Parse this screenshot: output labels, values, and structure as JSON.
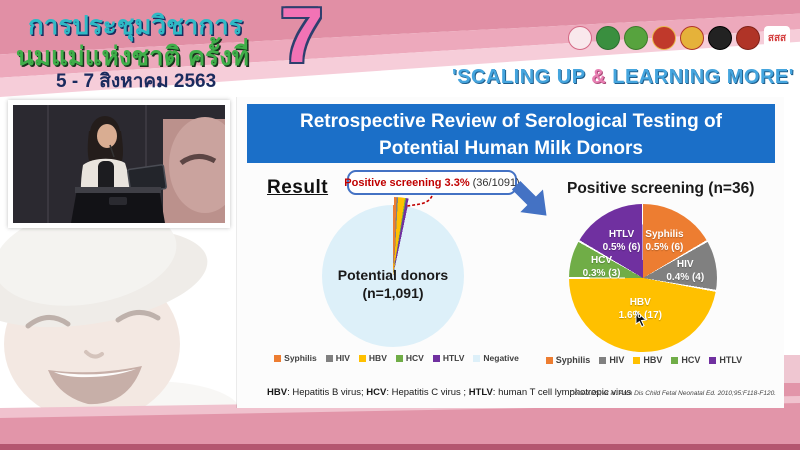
{
  "banner": {
    "title_line1": "การประชุมวิชาการ",
    "title_line2": "นมแม่แห่งชาติ ครั้งที่",
    "date_line": "5 - 7 สิงหาคม 2563",
    "edition_number": "7",
    "slogan_part1": "'SCALING UP ",
    "slogan_amp": "&",
    "slogan_part2": " LEARNING MORE'",
    "logos": [
      {
        "name": "mother-child-foundation-logo",
        "color": "#F9E8EC",
        "ring": "#D46A85"
      },
      {
        "name": "green-health-seal-logo",
        "color": "#3A8F3F",
        "ring": "#2C6E30"
      },
      {
        "name": "green-medical-seal-logo",
        "color": "#57A33E",
        "ring": "#3D7A2B"
      },
      {
        "name": "temple-crest-logo",
        "color": "#C0392B",
        "ring": "#E9B84C"
      },
      {
        "name": "royal-crest-logo",
        "color": "#E5B23A",
        "ring": "#B03427"
      },
      {
        "name": "black-university-seal-logo",
        "color": "#222222",
        "ring": "#000000"
      },
      {
        "name": "red-society-seal-logo",
        "color": "#B03427",
        "ring": "#7E2118"
      },
      {
        "name": "thai-health-sss-logo",
        "color": "#FFFFFF",
        "text": "สสส",
        "text_color": "#D43F3F"
      }
    ]
  },
  "slide": {
    "title_line1": "Retrospective Review of Serological Testing of",
    "title_line2": "Potential Human Milk Donors",
    "result_label": "Result",
    "callout_highlight": "Positive screening 3.3%",
    "callout_detail": "(36/1091)",
    "fn_b1": "HBV",
    "fn_t1": ": Hepatitis B virus; ",
    "fn_b2": "HCV",
    "fn_t2": ": Hepatitis C virus ; ",
    "fn_b3": "HTLV",
    "fn_t3": ": human T cell lymphotropic virus",
    "citation": "Cohen RS, et al. Arch Dis Child Fetal Neonatal Ed. 2010;95:F118-F120."
  },
  "chart_data": [
    {
      "type": "pie",
      "title": "",
      "center_label_line1": "Potential donors",
      "center_label_line2": "(n=1,091)",
      "total": 1091,
      "show_slice_labels": false,
      "exploded_sliver": true,
      "slice_gap_deg": 0,
      "slices": [
        {
          "label": "Syphilis",
          "value": 6,
          "color": "#ED7D31",
          "wedge": true
        },
        {
          "label": "HIV",
          "value": 4,
          "color": "#808080",
          "wedge": true
        },
        {
          "label": "HBV",
          "value": 17,
          "color": "#FFC000",
          "wedge": true
        },
        {
          "label": "HCV",
          "value": 3,
          "color": "#70AD47",
          "wedge": true
        },
        {
          "label": "HTLV",
          "value": 6,
          "color": "#7030A0",
          "wedge": true
        },
        {
          "label": "Negative",
          "value": 1055,
          "color": "#DDF0F9",
          "wedge": false
        }
      ]
    },
    {
      "type": "pie",
      "title": "Positive screening (n=36)",
      "total": 36,
      "show_slice_labels": true,
      "slice_gap_deg": 0.8,
      "slices": [
        {
          "label": "Syphilis",
          "value": 6,
          "pct_label": "0.5% (6)",
          "color": "#ED7D31"
        },
        {
          "label": "HIV",
          "value": 4,
          "pct_label": "0.4% (4)",
          "color": "#808080"
        },
        {
          "label": "HBV",
          "value": 17,
          "pct_label": "1.6% (17)",
          "color": "#FFC000"
        },
        {
          "label": "HCV",
          "value": 3,
          "pct_label": "0.3% (3)",
          "color": "#70AD47"
        },
        {
          "label": "HTLV",
          "value": 6,
          "pct_label": "0.5% (6)",
          "color": "#7030A0"
        }
      ]
    }
  ]
}
